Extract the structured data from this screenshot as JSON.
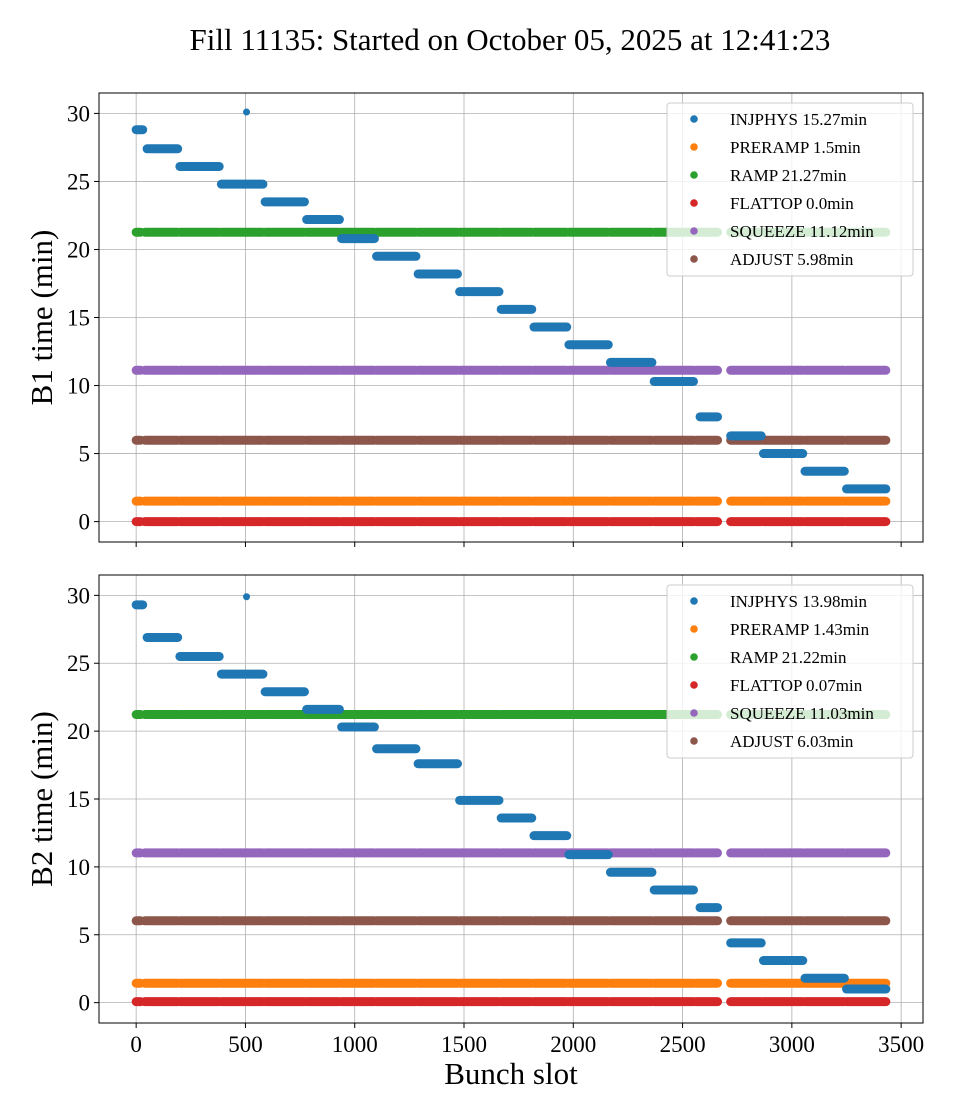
{
  "title": "Fill 11135: Started on October 05, 2025 at 12:41:23",
  "xlabel": "Bunch slot",
  "colors": {
    "INJPHYS": "#1f77b4",
    "PRERAMP": "#ff7f0e",
    "RAMP": "#2ca02c",
    "FLATTOP": "#d62728",
    "SQUEEZE": "#9467bd",
    "ADJUST": "#8c564b"
  },
  "chart_data": [
    {
      "type": "scatter",
      "ylabel": "B1 time (min)",
      "xlim": [
        -170,
        3600
      ],
      "ylim": [
        -1.5,
        31.5
      ],
      "xticks": [
        0,
        500,
        1000,
        1500,
        2000,
        2500,
        3000,
        3500
      ],
      "yticks": [
        0,
        5,
        10,
        15,
        20,
        25,
        30
      ],
      "grid": true,
      "legend_position": "top-right",
      "legend": [
        {
          "key": "INJPHYS",
          "label": "INJPHYS 15.27min"
        },
        {
          "key": "PRERAMP",
          "label": "PRERAMP 1.5min"
        },
        {
          "key": "RAMP",
          "label": "RAMP 21.27min"
        },
        {
          "key": "FLATTOP",
          "label": "FLATTOP 0.0min"
        },
        {
          "key": "SQUEEZE",
          "label": "SQUEEZE 11.12min"
        },
        {
          "key": "ADJUST",
          "label": "ADJUST 5.98min"
        }
      ],
      "flat_series": [
        {
          "key": "FLATTOP",
          "y": 0.0
        },
        {
          "key": "PRERAMP",
          "y": 1.5
        },
        {
          "key": "ADJUST",
          "y": 5.98
        },
        {
          "key": "SQUEEZE",
          "y": 11.12
        },
        {
          "key": "RAMP",
          "y": 21.27
        }
      ],
      "injphys_segments": [
        {
          "x": [
            0,
            30
          ],
          "y": 28.8
        },
        {
          "x": [
            50,
            190
          ],
          "y": 27.4
        },
        {
          "x": [
            200,
            380
          ],
          "y": 26.1
        },
        {
          "x": [
            390,
            580
          ],
          "y": 24.8
        },
        {
          "x": [
            590,
            770
          ],
          "y": 23.5
        },
        {
          "x": [
            780,
            930
          ],
          "y": 22.2
        },
        {
          "x": [
            940,
            1090
          ],
          "y": 20.8
        },
        {
          "x": [
            1100,
            1280
          ],
          "y": 19.5
        },
        {
          "x": [
            1290,
            1470
          ],
          "y": 18.2
        },
        {
          "x": [
            1480,
            1660
          ],
          "y": 16.9
        },
        {
          "x": [
            1670,
            1810
          ],
          "y": 15.6
        },
        {
          "x": [
            1820,
            1970
          ],
          "y": 14.3
        },
        {
          "x": [
            1980,
            2160
          ],
          "y": 13.0
        },
        {
          "x": [
            2170,
            2360
          ],
          "y": 11.7
        },
        {
          "x": [
            2370,
            2550
          ],
          "y": 10.3
        },
        {
          "x": [
            2580,
            2660
          ],
          "y": 7.7
        },
        {
          "x": [
            2720,
            2860
          ],
          "y": 6.3
        },
        {
          "x": [
            2870,
            3050
          ],
          "y": 5.0
        },
        {
          "x": [
            3060,
            3240
          ],
          "y": 3.7
        },
        {
          "x": [
            3250,
            3430
          ],
          "y": 2.4
        }
      ],
      "injphys_points": [
        {
          "x": 505,
          "y": 30.1
        }
      ]
    },
    {
      "type": "scatter",
      "ylabel": "B2 time (min)",
      "xlim": [
        -170,
        3600
      ],
      "ylim": [
        -1.5,
        31.5
      ],
      "xticks": [
        0,
        500,
        1000,
        1500,
        2000,
        2500,
        3000,
        3500
      ],
      "yticks": [
        0,
        5,
        10,
        15,
        20,
        25,
        30
      ],
      "grid": true,
      "legend_position": "top-right",
      "legend": [
        {
          "key": "INJPHYS",
          "label": "INJPHYS 13.98min"
        },
        {
          "key": "PRERAMP",
          "label": "PRERAMP 1.43min"
        },
        {
          "key": "RAMP",
          "label": "RAMP 21.22min"
        },
        {
          "key": "FLATTOP",
          "label": "FLATTOP 0.07min"
        },
        {
          "key": "SQUEEZE",
          "label": "SQUEEZE 11.03min"
        },
        {
          "key": "ADJUST",
          "label": "ADJUST 6.03min"
        }
      ],
      "flat_series": [
        {
          "key": "FLATTOP",
          "y": 0.07
        },
        {
          "key": "PRERAMP",
          "y": 1.43
        },
        {
          "key": "ADJUST",
          "y": 6.03
        },
        {
          "key": "SQUEEZE",
          "y": 11.03
        },
        {
          "key": "RAMP",
          "y": 21.22
        }
      ],
      "injphys_segments": [
        {
          "x": [
            0,
            30
          ],
          "y": 29.3
        },
        {
          "x": [
            50,
            190
          ],
          "y": 26.9
        },
        {
          "x": [
            200,
            380
          ],
          "y": 25.5
        },
        {
          "x": [
            390,
            580
          ],
          "y": 24.2
        },
        {
          "x": [
            590,
            770
          ],
          "y": 22.9
        },
        {
          "x": [
            780,
            930
          ],
          "y": 21.6
        },
        {
          "x": [
            940,
            1090
          ],
          "y": 20.3
        },
        {
          "x": [
            1100,
            1280
          ],
          "y": 18.7
        },
        {
          "x": [
            1290,
            1470
          ],
          "y": 17.6
        },
        {
          "x": [
            1480,
            1660
          ],
          "y": 14.9
        },
        {
          "x": [
            1670,
            1810
          ],
          "y": 13.6
        },
        {
          "x": [
            1820,
            1970
          ],
          "y": 12.3
        },
        {
          "x": [
            1980,
            2160
          ],
          "y": 10.9
        },
        {
          "x": [
            2170,
            2360
          ],
          "y": 9.6
        },
        {
          "x": [
            2370,
            2550
          ],
          "y": 8.3
        },
        {
          "x": [
            2580,
            2660
          ],
          "y": 7.0
        },
        {
          "x": [
            2720,
            2860
          ],
          "y": 4.4
        },
        {
          "x": [
            2870,
            3050
          ],
          "y": 3.1
        },
        {
          "x": [
            3060,
            3240
          ],
          "y": 1.8
        },
        {
          "x": [
            3250,
            3430
          ],
          "y": 1.0
        }
      ],
      "injphys_points": [
        {
          "x": 505,
          "y": 29.9
        }
      ]
    }
  ],
  "bunch_train_segments": [
    [
      0,
      20
    ],
    [
      40,
      190
    ],
    [
      200,
      380
    ],
    [
      390,
      580
    ],
    [
      590,
      770
    ],
    [
      780,
      930
    ],
    [
      940,
      1090
    ],
    [
      1100,
      1280
    ],
    [
      1290,
      1470
    ],
    [
      1480,
      1660
    ],
    [
      1670,
      1810
    ],
    [
      1820,
      1970
    ],
    [
      1980,
      2160
    ],
    [
      2170,
      2360
    ],
    [
      2370,
      2550
    ],
    [
      2560,
      2660
    ],
    [
      2720,
      2860
    ],
    [
      2870,
      3050
    ],
    [
      3060,
      3240
    ],
    [
      3250,
      3430
    ]
  ]
}
